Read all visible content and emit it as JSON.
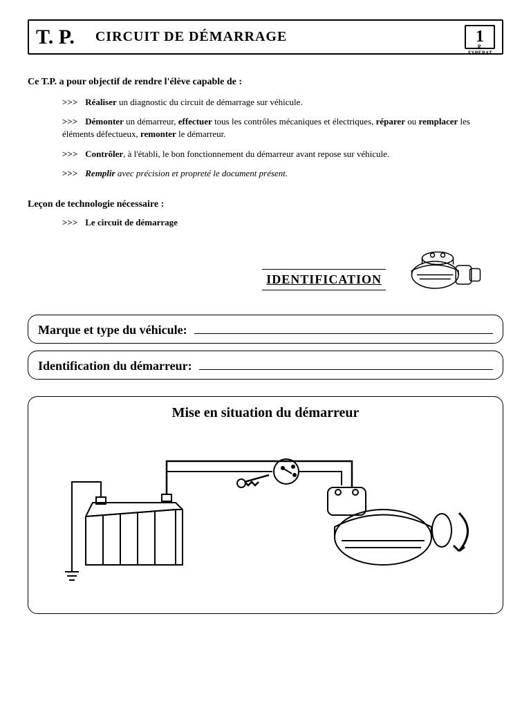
{
  "header": {
    "tp_label": "T. P.",
    "title": "CIRCUIT  DE  DÉMARRAGE",
    "page_number": "1",
    "author": "R. ESPERAT"
  },
  "intro": "Ce  T.P.   a pour objectif de rendre l'élève capable de :",
  "arrow": ">>>",
  "objectives": [
    {
      "html": "<b>Réaliser</b> un diagnostic du circuit de démarrage sur véhicule."
    },
    {
      "html": "<b>Démonter</b> un démarreur, <b>effectuer</b> tous les contrôles mécaniques et électriques, <b>réparer</b> ou <b>remplacer</b> les éléments défectueux, <b>remonter</b> le démarreur."
    },
    {
      "html": "<b>Contrôler</b>, à l'établi, le bon fonctionnement du démarreur avant repose sur véhicule."
    },
    {
      "html": "<i><b>Remplir</b>  avec  précision  et  propreté  le  document  présent.</i>"
    }
  ],
  "lesson": {
    "title": "Leçon  de technologie nécessaire :",
    "item": "Le circuit de démarrage"
  },
  "identification": {
    "heading": "IDENTIFICATION",
    "vehicle_label": "Marque  et  type du véhicule:",
    "starter_label": "Identification  du  démarreur:"
  },
  "situation": {
    "title": "Mise  en  situation  du  démarreur"
  },
  "colors": {
    "text": "#000000",
    "border": "#000000",
    "bg": "#ffffff"
  }
}
